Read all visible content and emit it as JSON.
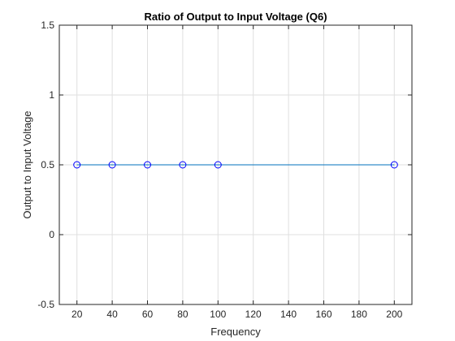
{
  "chart_data": {
    "type": "line",
    "title": "Ratio of Output to Input Voltage (Q6)",
    "xlabel": "Frequency",
    "ylabel": "Output to Input Voltage",
    "xlim": [
      10,
      210
    ],
    "ylim": [
      -0.5,
      1.5
    ],
    "xticks": [
      20,
      40,
      60,
      80,
      100,
      120,
      140,
      160,
      180,
      200
    ],
    "xtick_labels": [
      "20",
      "40",
      "60",
      "80",
      "100",
      "120",
      "140",
      "160",
      "180",
      "200"
    ],
    "yticks": [
      -0.5,
      0,
      0.5,
      1,
      1.5
    ],
    "ytick_labels": [
      "-0.5",
      "0",
      "0.5",
      "1",
      "1.5"
    ],
    "grid": true,
    "series": [
      {
        "x": [
          20,
          40,
          60,
          80,
          100,
          200
        ],
        "y": [
          0.5,
          0.5,
          0.5,
          0.5,
          0.5,
          0.5
        ],
        "line_color": "#0072BD",
        "marker": "circle",
        "marker_color": "#0000FF"
      }
    ]
  }
}
